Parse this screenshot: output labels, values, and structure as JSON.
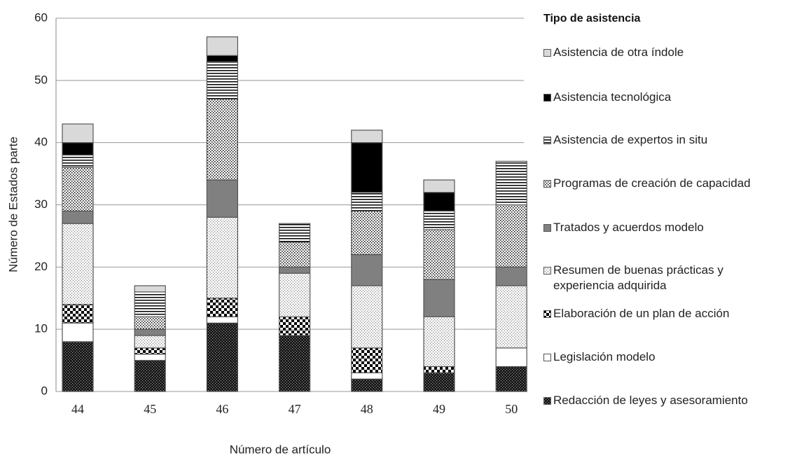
{
  "chart_data": {
    "type": "stacked_bar",
    "y_axis_label": "Número de Estados parte",
    "x_axis_label": "Número de artículo",
    "legend_title": "Tipo de asistencia",
    "categories": [
      "44",
      "45",
      "46",
      "47",
      "48",
      "49",
      "50"
    ],
    "ylim": [
      0,
      60
    ],
    "yticks": [
      0,
      10,
      20,
      30,
      40,
      50,
      60
    ],
    "grid": true,
    "legend": "right",
    "series": [
      {
        "name": "Redacción de leyes y asesoramiento",
        "color": "#1a1a1a",
        "values": [
          8,
          5,
          11,
          9,
          2,
          3,
          4
        ]
      },
      {
        "name": "Legislación modelo",
        "color": "#ffffff",
        "values": [
          3,
          1,
          1,
          0,
          1,
          0,
          3
        ]
      },
      {
        "name": "Elaboración de un plan de acción",
        "color": "#ffffff",
        "values": [
          3,
          1,
          3,
          3,
          4,
          1,
          0
        ]
      },
      {
        "name": "Resumen de buenas prácticas y\nexperiencia adquirida",
        "color": "#f4f4f4",
        "values": [
          13,
          2,
          13,
          7,
          10,
          8,
          10
        ]
      },
      {
        "name": "Tratados y acuerdos modelo",
        "color": "#808080",
        "values": [
          2,
          1,
          6,
          1,
          5,
          6,
          3
        ]
      },
      {
        "name": "Programas de creación de capacidad",
        "color": "#ffffff",
        "values": [
          7,
          2,
          13,
          4,
          7,
          8,
          10
        ]
      },
      {
        "name": "Asistencia de expertos in situ",
        "color": "#ffffff",
        "values": [
          2,
          4,
          6,
          3,
          3,
          3,
          7
        ]
      },
      {
        "name": "Asistencia tecnológica",
        "color": "#000000",
        "values": [
          2,
          0,
          1,
          0,
          8,
          3,
          0
        ]
      },
      {
        "name": "Asistencia de otra índole",
        "color": "#d9d9d9",
        "values": [
          3,
          1,
          3,
          0,
          2,
          2,
          0
        ]
      }
    ]
  }
}
